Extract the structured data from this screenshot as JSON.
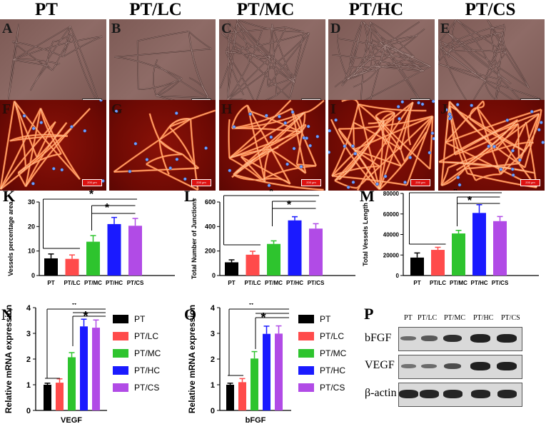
{
  "columns": [
    "PT",
    "PT/LC",
    "PT/MC",
    "PT/HC",
    "PT/CS"
  ],
  "panel_letters_top": [
    "A",
    "B",
    "C",
    "D",
    "E"
  ],
  "panel_letters_bottom": [
    "F",
    "G",
    "H",
    "I",
    "J"
  ],
  "scalebar_text": "200 μm",
  "colors": {
    "PT": "#000000",
    "PT/LC": "#ff4b4b",
    "PT/MC": "#2ec42e",
    "PT/HC": "#1a1aff",
    "PT/CS": "#b14be6"
  },
  "significance_mark": "*",
  "chart_data": [
    {
      "id": "K",
      "type": "bar",
      "categories": [
        "PT",
        "PT/LC",
        "PT/MC",
        "PT/HC",
        "PT/CS"
      ],
      "values": [
        7.0,
        6.8,
        13.8,
        21.0,
        20.3
      ],
      "errors": [
        1.8,
        1.6,
        2.5,
        2.7,
        3.0
      ],
      "ylabel": "Vessels percentage area",
      "xlabel": "",
      "ylim": [
        0,
        30
      ],
      "yticks": [
        0,
        10,
        20,
        30
      ]
    },
    {
      "id": "L",
      "type": "bar",
      "categories": [
        "PT",
        "PT/LC",
        "PT/MC",
        "PT/HC",
        "PT/CS"
      ],
      "values": [
        108,
        170,
        258,
        450,
        383
      ],
      "errors": [
        20,
        28,
        25,
        30,
        40
      ],
      "ylabel": "Total Number of Junctions",
      "xlabel": "",
      "ylim": [
        0,
        600
      ],
      "yticks": [
        0,
        200,
        400,
        600
      ]
    },
    {
      "id": "M",
      "type": "bar",
      "categories": [
        "PT",
        "PT/LC",
        "PT/MC",
        "PT/HC",
        "PT/CS"
      ],
      "values": [
        17500,
        25000,
        41000,
        61000,
        53000
      ],
      "errors": [
        4500,
        2500,
        3000,
        8000,
        4500
      ],
      "ylabel": "Total Vessels Length",
      "xlabel": "",
      "ylim": [
        0,
        80000
      ],
      "yticks": [
        0,
        20000,
        40000,
        60000,
        80000
      ]
    },
    {
      "id": "N",
      "type": "bar",
      "categories": [
        ""
      ],
      "series": [
        {
          "name": "PT",
          "values": [
            1.0
          ],
          "errors": [
            0.06
          ]
        },
        {
          "name": "PT/LC",
          "values": [
            1.08
          ],
          "errors": [
            0.15
          ]
        },
        {
          "name": "PT/MC",
          "values": [
            2.07
          ],
          "errors": [
            0.18
          ]
        },
        {
          "name": "PT/HC",
          "values": [
            3.27
          ],
          "errors": [
            0.28
          ]
        },
        {
          "name": "PT/CS",
          "values": [
            3.22
          ],
          "errors": [
            0.3
          ]
        }
      ],
      "ylabel": "Relative mRNA expression",
      "xlabel": "VEGF",
      "ylim": [
        0,
        4
      ],
      "yticks": [
        0,
        1,
        2,
        3,
        4
      ]
    },
    {
      "id": "O",
      "type": "bar",
      "categories": [
        ""
      ],
      "series": [
        {
          "name": "PT",
          "values": [
            1.0
          ],
          "errors": [
            0.06
          ]
        },
        {
          "name": "PT/LC",
          "values": [
            1.1
          ],
          "errors": [
            0.14
          ]
        },
        {
          "name": "PT/MC",
          "values": [
            2.02
          ],
          "errors": [
            0.27
          ]
        },
        {
          "name": "PT/HC",
          "values": [
            2.98
          ],
          "errors": [
            0.3
          ]
        },
        {
          "name": "PT/CS",
          "values": [
            2.99
          ],
          "errors": [
            0.3
          ]
        }
      ],
      "ylabel": "Relative mRNA expression",
      "xlabel": "bFGF",
      "ylim": [
        0,
        4
      ],
      "yticks": [
        0,
        1,
        2,
        3,
        4
      ]
    }
  ],
  "blot": {
    "letter": "P",
    "columns": [
      "PT",
      "PT/LC",
      "PT/MC",
      "PT/HC",
      "PT/CS"
    ],
    "rows": [
      {
        "label": "bFGF",
        "intensity": [
          0.35,
          0.5,
          0.85,
          0.95,
          0.95
        ]
      },
      {
        "label": "VEGF",
        "intensity": [
          0.3,
          0.35,
          0.6,
          0.95,
          0.95
        ]
      },
      {
        "label": "β-actin",
        "intensity": [
          0.9,
          0.9,
          0.9,
          0.9,
          0.9
        ]
      }
    ]
  }
}
